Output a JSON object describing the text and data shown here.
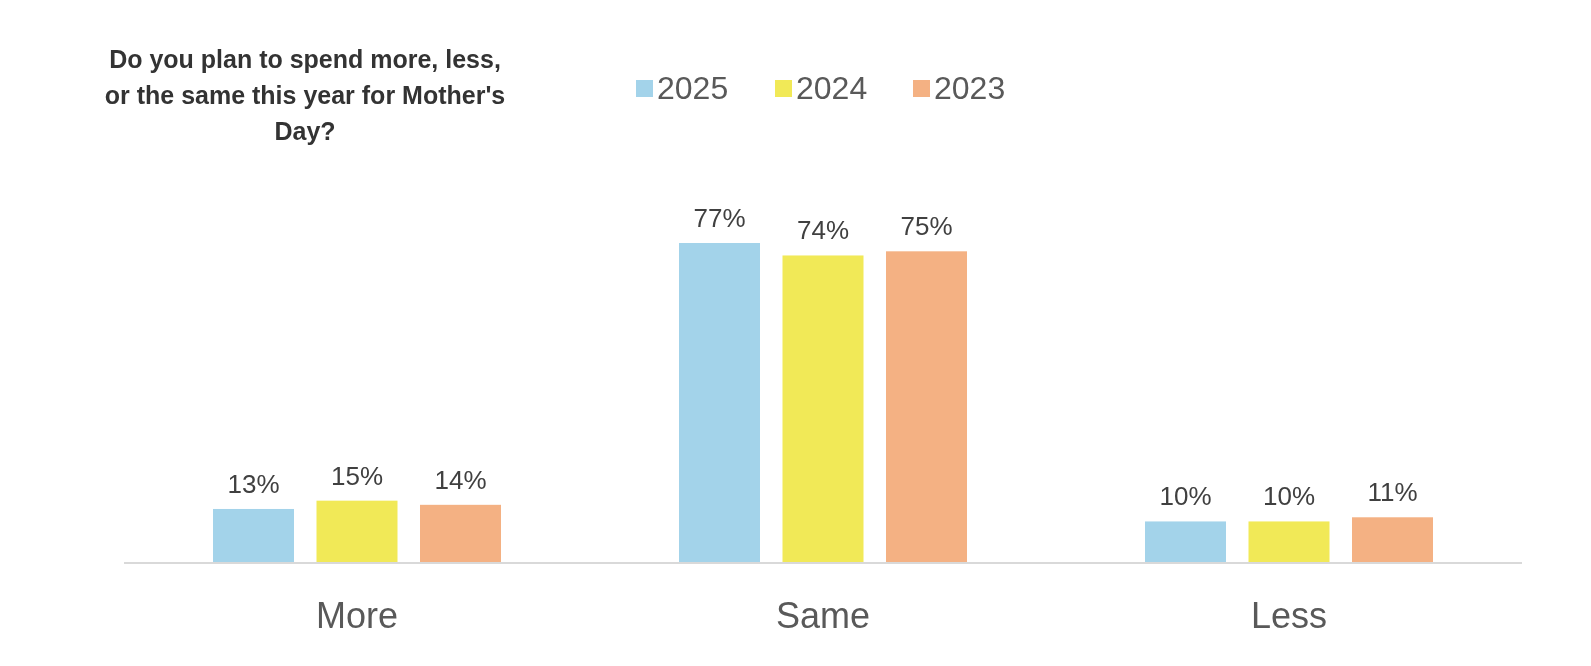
{
  "chart_data": {
    "type": "bar",
    "title": "Do you plan to spend more, less, or the same this year for Mother's Day?",
    "categories": [
      "More",
      "Same",
      "Less"
    ],
    "series": [
      {
        "name": "2025",
        "color": "#a3d3ea",
        "values": [
          13,
          77,
          10
        ],
        "value_labels": [
          "13%",
          "77%",
          "10%"
        ]
      },
      {
        "name": "2024",
        "color": "#f1e957",
        "values": [
          15,
          74,
          10
        ],
        "value_labels": [
          "15%",
          "74%",
          "10%"
        ]
      },
      {
        "name": "2023",
        "color": "#f4b183",
        "values": [
          14,
          75,
          11
        ],
        "value_labels": [
          "14%",
          "75%",
          "11%"
        ]
      }
    ],
    "legend": "top"
  }
}
